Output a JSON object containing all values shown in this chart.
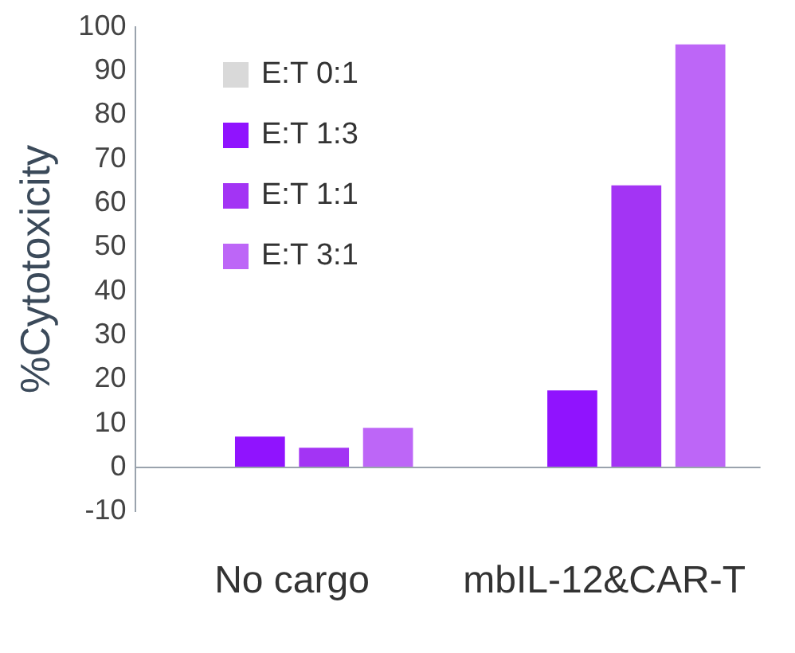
{
  "chart_data": {
    "type": "bar",
    "ylabel": "%Cytotoxicity",
    "categories": [
      "No cargo",
      "mbIL-12&CAR-T"
    ],
    "series": [
      {
        "name": "E:T 0:1",
        "color": "#d9d9d9",
        "values": [
          0,
          0
        ]
      },
      {
        "name": "E:T 1:3",
        "color": "#9013fe",
        "values": [
          7,
          17.5
        ]
      },
      {
        "name": "E:T 1:1",
        "color": "#a334f4",
        "values": [
          4.5,
          64
        ]
      },
      {
        "name": "E:T 3:1",
        "color": "#bd66f7",
        "values": [
          9,
          96
        ]
      }
    ],
    "ylim": [
      -10,
      100
    ],
    "yticks": [
      -10,
      0,
      10,
      20,
      30,
      40,
      50,
      60,
      70,
      80,
      90,
      100
    ],
    "grid": false,
    "legend": "top left"
  }
}
